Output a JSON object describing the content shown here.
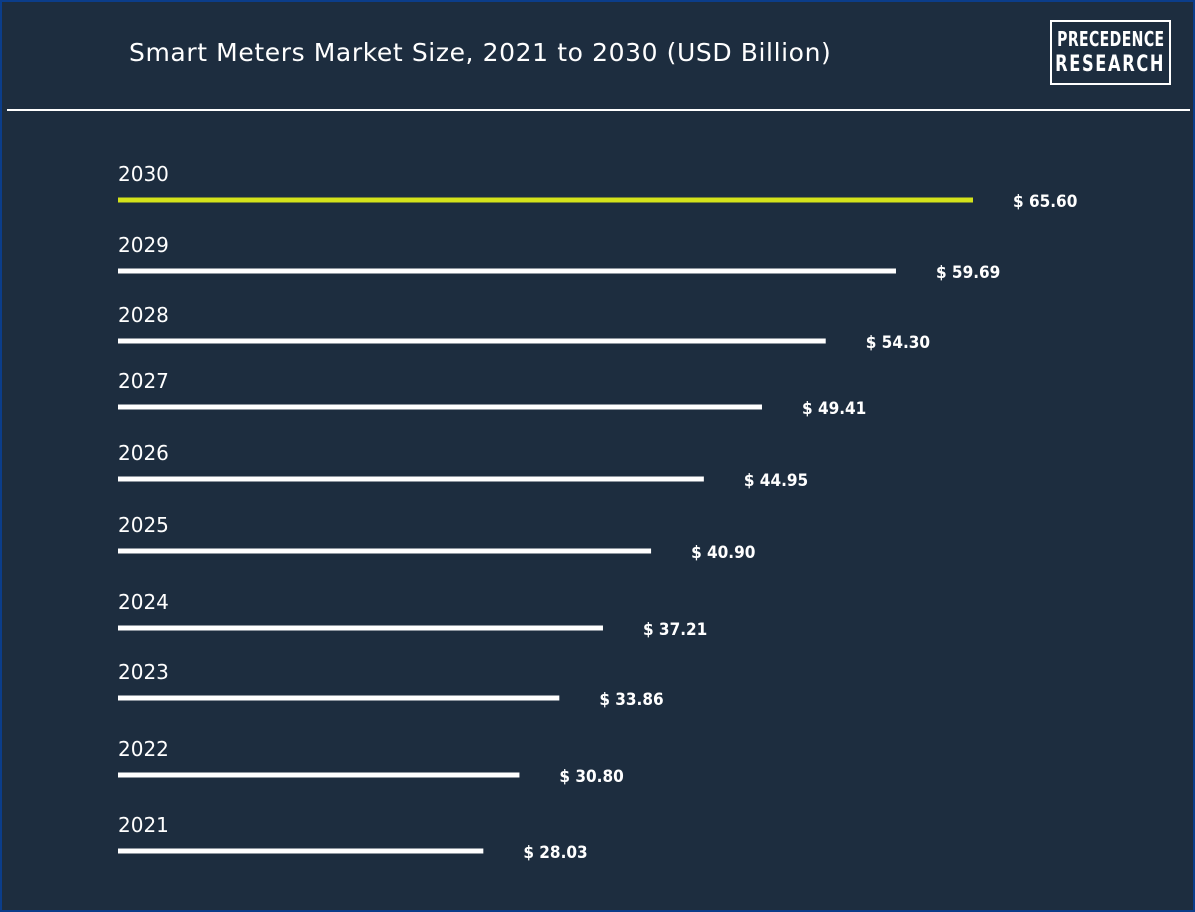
{
  "header": {
    "title": "Smart Meters Market Size, 2021 to 2030 (USD Billion)",
    "logo_line1": "PRECEDENCE",
    "logo_line2": "RESEARCH"
  },
  "colors": {
    "background": "#1d2d3f",
    "bar": "#ffffff",
    "highlight_bar": "#d4e21b",
    "text": "#ffffff",
    "border": "#0b3d8a"
  },
  "chart_data": {
    "type": "bar",
    "orientation": "horizontal",
    "title": "Smart Meters Market Size, 2021 to 2030 (USD Billion)",
    "categories": [
      "2030",
      "2029",
      "2028",
      "2027",
      "2026",
      "2025",
      "2024",
      "2023",
      "2022",
      "2021"
    ],
    "values": [
      65.6,
      59.69,
      54.3,
      49.41,
      44.95,
      40.9,
      37.21,
      33.86,
      30.8,
      28.03
    ],
    "value_labels": [
      "$ 65.60",
      "$ 59.69",
      "$ 54.30",
      "$ 49.41",
      "$ 44.95",
      "$ 40.90",
      "$ 37.21",
      "$ 33.86",
      "$ 30.80",
      "$ 28.03"
    ],
    "highlight_category": "2030",
    "xlim": [
      0,
      65.6
    ],
    "grid": false,
    "legend": "none"
  }
}
